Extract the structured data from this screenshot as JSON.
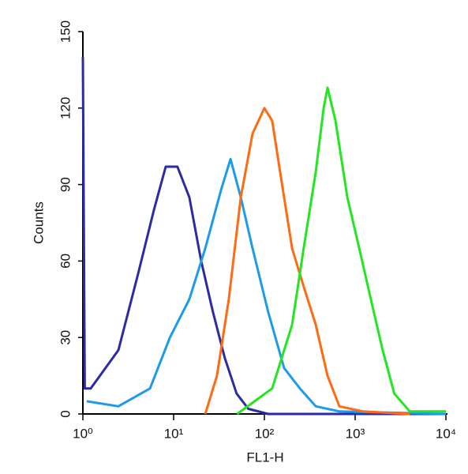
{
  "chart_data": {
    "type": "line",
    "x_label": "FL1-H",
    "y_label": "Counts",
    "xscale": "log",
    "xlim": [
      1,
      10000
    ],
    "xticks": [
      {
        "value": 1,
        "label": "10⁰"
      },
      {
        "value": 10,
        "label": "10¹"
      },
      {
        "value": 100,
        "label": "10²"
      },
      {
        "value": 1000,
        "label": "10³"
      },
      {
        "value": 10000,
        "label": "10⁴"
      }
    ],
    "ylim": [
      0,
      150
    ],
    "yticks": [
      0,
      30,
      60,
      90,
      120,
      150
    ],
    "series": [
      {
        "color": "#2b2ba8",
        "x": [
          1,
          1.05,
          1.22,
          2.46,
          4.06,
          6.06,
          8.18,
          11,
          14.9,
          20.1,
          27.1,
          36.6,
          49.4,
          66.6,
          110,
          10000
        ],
        "values": [
          140,
          10,
          10,
          25,
          55,
          80,
          97,
          97,
          85,
          60,
          40,
          22,
          8,
          2,
          0,
          0
        ]
      },
      {
        "color": "#1e9be8",
        "x": [
          1.1,
          2.46,
          5.5,
          9.1,
          14.9,
          22.3,
          33.4,
          42.4,
          54.9,
          74,
          110,
          165,
          246,
          368,
          670,
          10000
        ],
        "values": [
          5,
          3,
          10,
          30,
          45,
          65,
          88,
          100,
          85,
          65,
          40,
          18,
          10,
          3,
          1,
          0
        ]
      },
      {
        "color": "#ff6a13",
        "x": [
          22.3,
          30,
          40.5,
          55,
          74,
          100,
          122,
          149,
          202,
          271,
          368,
          496,
          670,
          1220,
          4000
        ],
        "values": [
          0,
          15,
          45,
          85,
          110,
          120,
          115,
          95,
          65,
          50,
          35,
          15,
          3,
          1,
          0
        ]
      },
      {
        "color": "#22e622",
        "x": [
          50,
          122,
          202,
          271,
          368,
          450,
          496,
          608,
          820,
          1110,
          1490,
          2010,
          2700,
          4000,
          10000
        ],
        "values": [
          0,
          10,
          35,
          65,
          95,
          120,
          128,
          115,
          85,
          65,
          45,
          25,
          8,
          1,
          1
        ]
      }
    ]
  }
}
